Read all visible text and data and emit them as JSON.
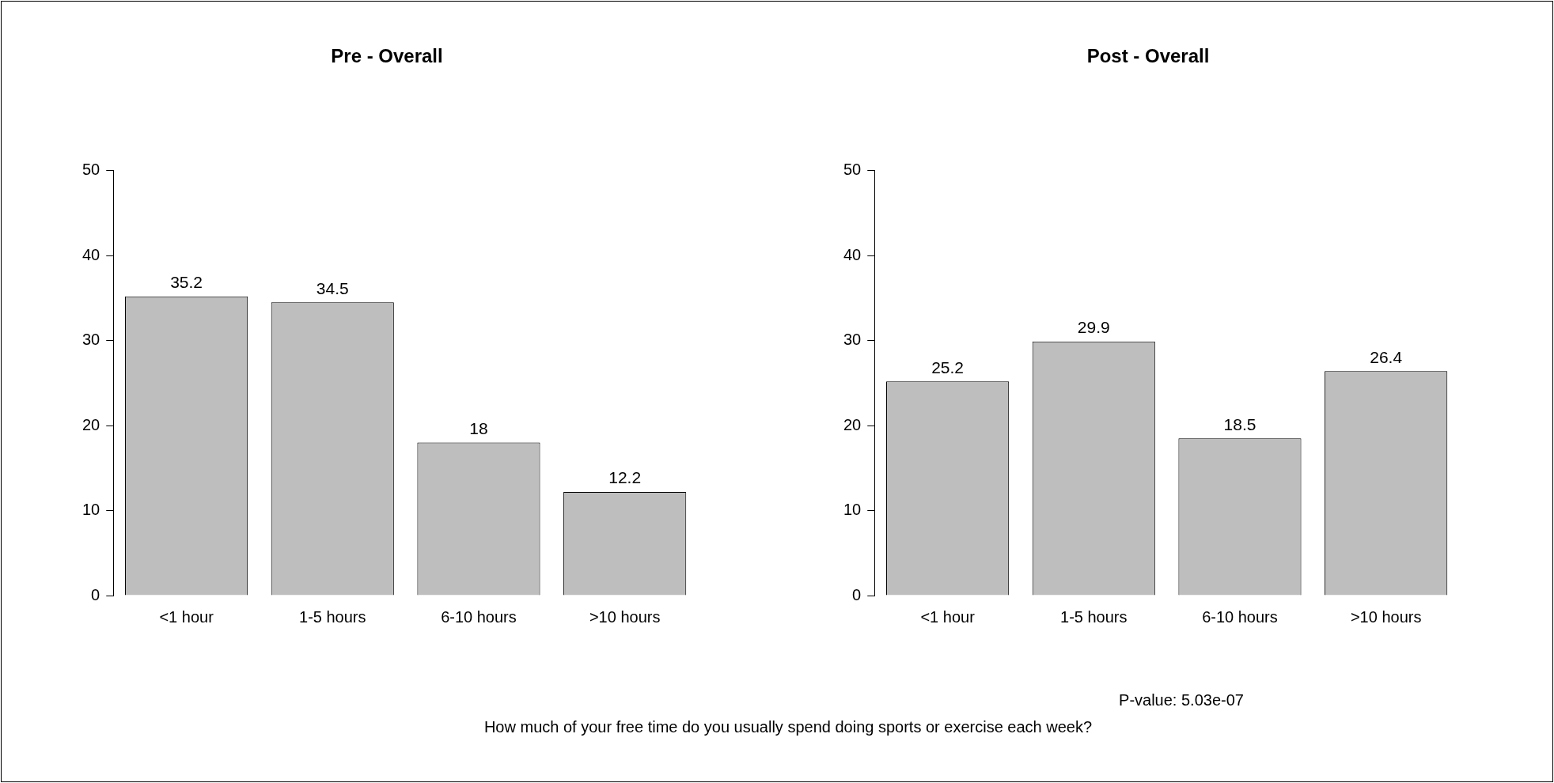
{
  "chart_data": [
    {
      "type": "bar",
      "title": "Pre - Overall",
      "categories": [
        "<1 hour",
        "1-5 hours",
        "6-10 hours",
        ">10 hours"
      ],
      "values": [
        35.2,
        34.5,
        18,
        12.2
      ],
      "color": "#bebebe",
      "ylim": [
        0,
        50
      ],
      "yticks": [
        0,
        10,
        20,
        30,
        40,
        50
      ],
      "grid": false,
      "legend": false,
      "data_labels": true,
      "annotations": [
        "How much of your free time do you usually spend doing sports or exercise each week?"
      ]
    },
    {
      "type": "bar",
      "title": "Post - Overall",
      "categories": [
        "<1 hour",
        "1-5 hours",
        "6-10 hours",
        ">10 hours"
      ],
      "values": [
        25.2,
        29.9,
        18.5,
        26.4
      ],
      "color": "#bebebe",
      "ylim": [
        0,
        50
      ],
      "yticks": [
        0,
        10,
        20,
        30,
        40,
        50
      ],
      "grid": false,
      "legend": false,
      "data_labels": true,
      "annotations": [
        "P-value: 5.03e-07"
      ]
    }
  ]
}
